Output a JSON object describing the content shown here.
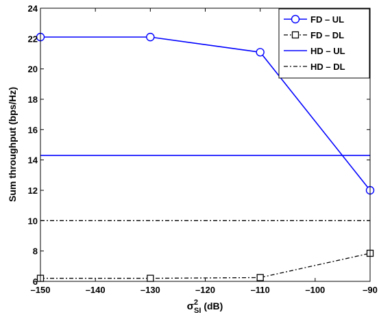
{
  "chart_data": {
    "type": "line",
    "title": "",
    "xlabel_symbol": "σ",
    "xlabel_sup": "2",
    "xlabel_sub": "SI",
    "xlabel_unit": " (dB)",
    "ylabel": "Sum throughput (bps/Hz)",
    "xlim": [
      -150,
      -90
    ],
    "ylim": [
      6,
      24
    ],
    "xticks": [
      -150,
      -140,
      -130,
      -120,
      -110,
      -100,
      -90
    ],
    "xtick_labels": [
      "–150",
      "–140",
      "–130",
      "–120",
      "–110",
      "–100",
      "–90"
    ],
    "yticks": [
      6,
      8,
      10,
      12,
      14,
      16,
      18,
      20,
      22,
      24
    ],
    "ytick_labels": [
      "6",
      "8",
      "10",
      "12",
      "14",
      "16",
      "18",
      "20",
      "22",
      "24"
    ],
    "grid": false,
    "legend_position": "top-right",
    "series": [
      {
        "name": "FD – UL",
        "x": [
          -150,
          -130,
          -110,
          -90
        ],
        "y": [
          22.1,
          22.1,
          21.1,
          12.0
        ],
        "color": "#0000ff",
        "line": "solid",
        "marker": "circle"
      },
      {
        "name": "FD – DL",
        "x": [
          -150,
          -130,
          -110,
          -90
        ],
        "y": [
          6.2,
          6.2,
          6.25,
          7.85
        ],
        "color": "#000000",
        "line": "dashdot",
        "marker": "square"
      },
      {
        "name": "HD – UL",
        "x": [
          -150,
          -90
        ],
        "y": [
          14.3,
          14.3
        ],
        "color": "#0000ff",
        "line": "solid",
        "marker": "none"
      },
      {
        "name": "HD – DL",
        "x": [
          -150,
          -90
        ],
        "y": [
          10.0,
          10.0
        ],
        "color": "#000000",
        "line": "dashdot",
        "marker": "none"
      }
    ]
  }
}
